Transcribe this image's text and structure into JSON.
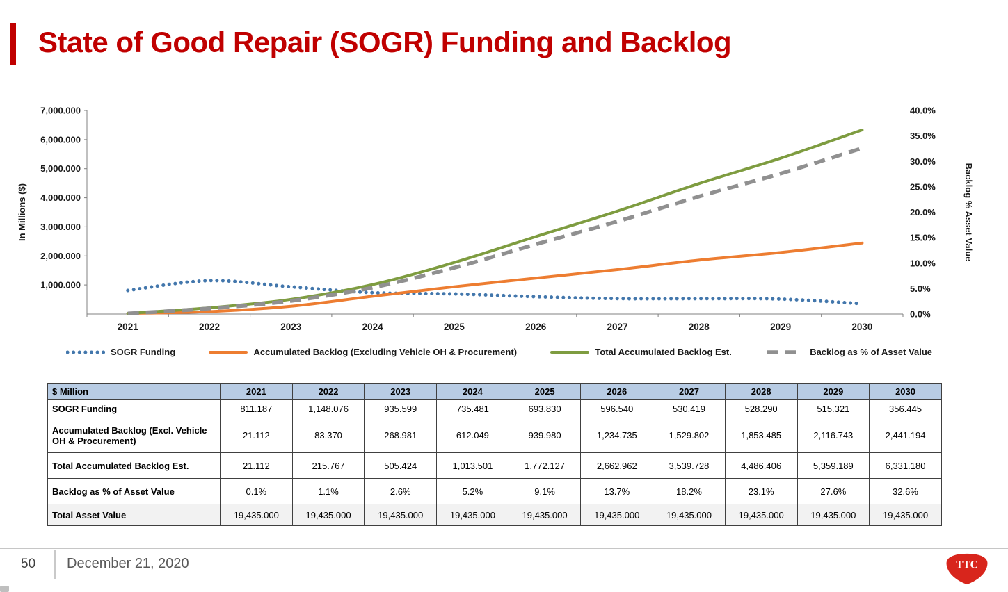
{
  "slide": {
    "title": "State of Good Repair (SOGR) Funding and Backlog",
    "accent_color": "#C00000",
    "footer": {
      "page_number": "50",
      "date": "December 21, 2020"
    },
    "logo_text": "TTC"
  },
  "chart_data": {
    "type": "line",
    "title": "",
    "x": [
      "2021",
      "2022",
      "2023",
      "2024",
      "2025",
      "2026",
      "2027",
      "2028",
      "2029",
      "2030"
    ],
    "grid": false,
    "legend_position": "bottom",
    "left_axis": {
      "title": "In Millions ($)",
      "min": 0,
      "max": 7000,
      "ticks": [
        {
          "value": 1000,
          "label": "1,000.000"
        },
        {
          "value": 2000,
          "label": "2,000.000"
        },
        {
          "value": 3000,
          "label": "3,000.000"
        },
        {
          "value": 4000,
          "label": "4,000.000"
        },
        {
          "value": 5000,
          "label": "5,000.000"
        },
        {
          "value": 6000,
          "label": "6,000.000"
        },
        {
          "value": 7000,
          "label": "7,000.000"
        }
      ]
    },
    "right_axis": {
      "title": "Backlog % Asset Value",
      "min": 0,
      "max": 40,
      "ticks": [
        {
          "value": 0,
          "label": "0.0%"
        },
        {
          "value": 5,
          "label": "5.0%"
        },
        {
          "value": 10,
          "label": "10.0%"
        },
        {
          "value": 15,
          "label": "15.0%"
        },
        {
          "value": 20,
          "label": "20.0%"
        },
        {
          "value": 25,
          "label": "25.0%"
        },
        {
          "value": 30,
          "label": "30.0%"
        },
        {
          "value": 35,
          "label": "35.0%"
        },
        {
          "value": 40,
          "label": "40.0%"
        }
      ]
    },
    "series": [
      {
        "id": "sogr-funding",
        "name": "SOGR Funding",
        "axis": "left",
        "style": "dotted",
        "color": "#4377AC",
        "values": [
          811.187,
          1148.076,
          935.599,
          735.481,
          693.83,
          596.54,
          530.419,
          528.29,
          515.321,
          356.445
        ]
      },
      {
        "id": "accumulated-backlog",
        "name": "Accumulated Backlog (Excluding Vehicle OH & Procurement)",
        "axis": "left",
        "style": "solid",
        "color": "#ED7D31",
        "values": [
          21.112,
          83.37,
          268.981,
          612.049,
          939.98,
          1234.735,
          1529.802,
          1853.485,
          2116.743,
          2441.194
        ]
      },
      {
        "id": "total-accumulated-backlog",
        "name": "Total Accumulated Backlog Est.",
        "axis": "left",
        "style": "solid",
        "color": "#7E9C40",
        "values": [
          21.112,
          215.767,
          505.424,
          1013.501,
          1772.127,
          2662.962,
          3539.728,
          4486.406,
          5359.189,
          6331.18
        ]
      },
      {
        "id": "backlog-pct-asset-value",
        "name": "Backlog as % of  Asset Value",
        "axis": "right",
        "style": "dashed",
        "color": "#909090",
        "values": [
          0.1,
          1.1,
          2.6,
          5.2,
          9.1,
          13.7,
          18.2,
          23.1,
          27.6,
          32.6
        ]
      }
    ]
  },
  "table": {
    "header": [
      "$ Million",
      "2021",
      "2022",
      "2023",
      "2024",
      "2025",
      "2026",
      "2027",
      "2028",
      "2029",
      "2030"
    ],
    "rows": [
      {
        "label": "SOGR Funding",
        "values": [
          "811.187",
          "1,148.076",
          "935.599",
          "735.481",
          "693.830",
          "596.540",
          "530.419",
          "528.290",
          "515.321",
          "356.445"
        ]
      },
      {
        "label": "Accumulated Backlog (Excl. Vehicle OH & Procurement)",
        "values": [
          "21.112",
          "83.370",
          "268.981",
          "612.049",
          "939.980",
          "1,234.735",
          "1,529.802",
          "1,853.485",
          "2,116.743",
          "2,441.194"
        ]
      },
      {
        "label": "Total Accumulated Backlog Est.",
        "values": [
          "21.112",
          "215.767",
          "505.424",
          "1,013.501",
          "1,772.127",
          "2,662.962",
          "3,539.728",
          "4,486.406",
          "5,359.189",
          "6,331.180"
        ]
      },
      {
        "label": "Backlog as % of  Asset Value",
        "values": [
          "0.1%",
          "1.1%",
          "2.6%",
          "5.2%",
          "9.1%",
          "13.7%",
          "18.2%",
          "23.1%",
          "27.6%",
          "32.6%"
        ]
      },
      {
        "label": "Total Asset Value",
        "values": [
          "19,435.000",
          "19,435.000",
          "19,435.000",
          "19,435.000",
          "19,435.000",
          "19,435.000",
          "19,435.000",
          "19,435.000",
          "19,435.000",
          "19,435.000"
        ]
      }
    ]
  }
}
